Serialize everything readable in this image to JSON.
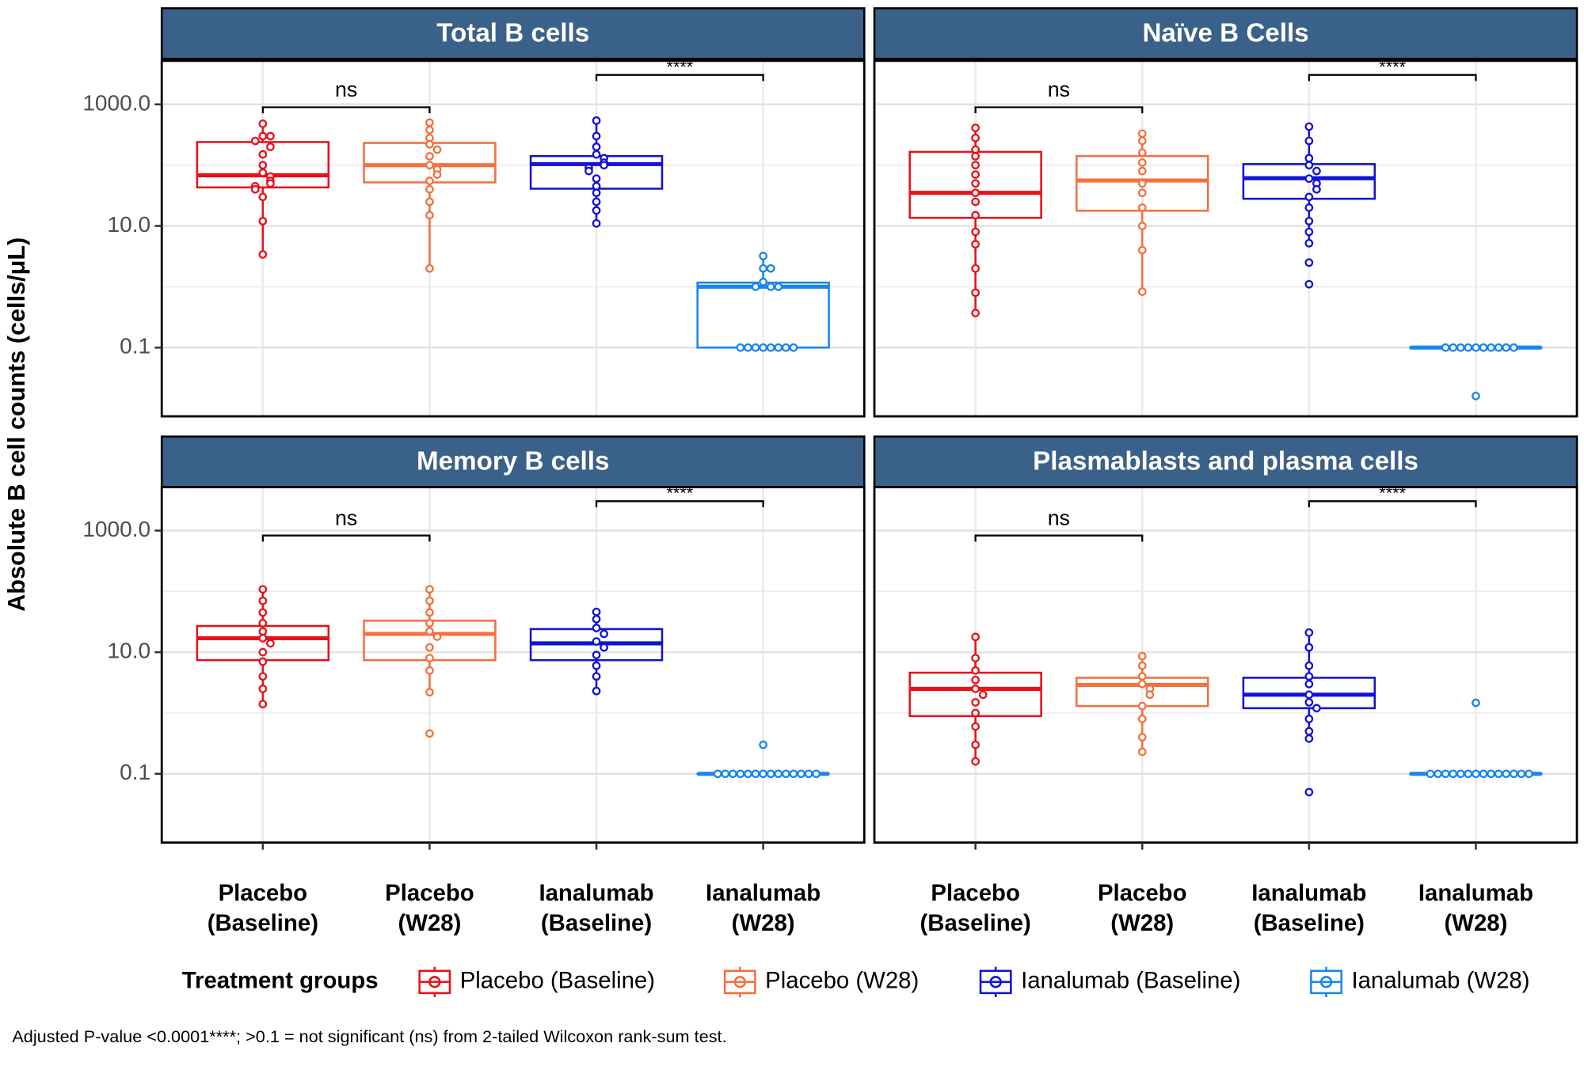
{
  "chart_data": {
    "type": "box",
    "y_label": "Absolute B cell counts (cells/μL)",
    "log_scale": true,
    "ylim": [
      0.0074,
      5200
    ],
    "yticks": [
      0.1,
      {
        "value": 10,
        "label": "10.0"
      },
      {
        "value": 1000,
        "label": "1000.0"
      }
    ],
    "minor_yticks": [
      1,
      100
    ],
    "grid": true,
    "categories": [
      "Placebo (Baseline)",
      "Placebo (W28)",
      "Ianalumab (Baseline)",
      "Ianalumab (W28)"
    ],
    "colors": [
      "#e8101a",
      "#f4703f",
      "#1212d6",
      "#1a85f0"
    ],
    "legend_title": "Treatment groups",
    "footnote": "Adjusted P-value <0.0001****;  >0.1 = not significant (ns) from 2-tailed Wilcoxon rank-sum test.",
    "panels": [
      {
        "title": "Total B cells",
        "comparisons": [
          {
            "groups": [
              0,
              1
            ],
            "label": "ns"
          },
          {
            "groups": [
              2,
              3
            ],
            "label": "****"
          }
        ],
        "boxes": [
          {
            "whisker_low": 3.4,
            "q1": 43,
            "median": 68,
            "q3": 240,
            "whisker_high": 480,
            "points": [
              480,
              300,
              300,
              250,
              200,
              150,
              100,
              75,
              65,
              55,
              50,
              45,
              40,
              30,
              12,
              3.4
            ]
          },
          {
            "whisker_low": 2.0,
            "q1": 52,
            "median": 100,
            "q3": 232,
            "whisker_high": 500,
            "points": [
              500,
              380,
              280,
              220,
              180,
              140,
              100,
              85,
              70,
              55,
              40,
              25,
              15,
              2.0
            ]
          },
          {
            "whisker_low": 11,
            "q1": 41,
            "median": 104,
            "q3": 141,
            "whisker_high": 540,
            "points": [
              540,
              300,
              200,
              150,
              130,
              110,
              100,
              90,
              80,
              60,
              45,
              35,
              25,
              18,
              11
            ]
          },
          {
            "whisker_low": 0.1,
            "q1": 0.1,
            "median": 1.0,
            "q3": 1.17,
            "whisker_high": 3.2,
            "points": [
              3.2,
              2.0,
              2.0,
              1.2,
              1.0,
              1.0,
              1.0,
              0.1,
              0.1,
              0.1,
              0.1,
              0.1,
              0.1,
              0.1,
              0.1
            ]
          }
        ]
      },
      {
        "title": "Naïve B Cells",
        "comparisons": [
          {
            "groups": [
              0,
              1
            ],
            "label": "ns"
          },
          {
            "groups": [
              2,
              3
            ],
            "label": "****"
          }
        ],
        "boxes": [
          {
            "whisker_low": 0.37,
            "q1": 13.6,
            "median": 35,
            "q3": 165,
            "whisker_high": 410,
            "points": [
              410,
              280,
              180,
              140,
              100,
              70,
              50,
              35,
              25,
              15,
              8,
              5,
              2,
              0.8,
              0.37
            ]
          },
          {
            "whisker_low": 0.83,
            "q1": 17.8,
            "median": 56,
            "q3": 141,
            "whisker_high": 330,
            "points": [
              330,
              250,
              160,
              110,
              80,
              50,
              35,
              20,
              10,
              4,
              0.83
            ]
          },
          {
            "whisker_low": 5.2,
            "q1": 28,
            "median": 61,
            "q3": 104,
            "whisker_high": 430,
            "points": [
              430,
              250,
              130,
              100,
              80,
              60,
              50,
              40,
              30,
              20,
              12,
              8,
              5.2,
              2.5,
              1.1
            ]
          },
          {
            "whisker_low": 0.1,
            "q1": 0.1,
            "median": 0.1,
            "q3": 0.1,
            "whisker_high": 0.1,
            "points": [
              0.1,
              0.1,
              0.1,
              0.1,
              0.1,
              0.1,
              0.1,
              0.1,
              0.1,
              0.1,
              0.016
            ]
          }
        ]
      },
      {
        "title": "Memory B cells",
        "comparisons": [
          {
            "groups": [
              0,
              1
            ],
            "label": "ns"
          },
          {
            "groups": [
              2,
              3
            ],
            "label": "****"
          }
        ],
        "boxes": [
          {
            "whisker_low": 1.4,
            "q1": 7.4,
            "median": 17,
            "q3": 27,
            "whisker_high": 108,
            "points": [
              108,
              70,
              45,
              30,
              22,
              17,
              14,
              10,
              7,
              4,
              2.5,
              1.4
            ]
          },
          {
            "whisker_low": 2.2,
            "q1": 7.4,
            "median": 20,
            "q3": 33,
            "whisker_high": 108,
            "points": [
              108,
              70,
              45,
              30,
              22,
              18,
              12,
              8,
              5,
              2.2,
              0.46
            ]
          },
          {
            "whisker_low": 2.3,
            "q1": 7.4,
            "median": 14,
            "q3": 24,
            "whisker_high": 46,
            "points": [
              46,
              35,
              25,
              20,
              15,
              12,
              9,
              6,
              4,
              2.3
            ]
          },
          {
            "whisker_low": 0.1,
            "q1": 0.1,
            "median": 0.1,
            "q3": 0.1,
            "whisker_high": 0.1,
            "points": [
              0.3,
              0.1,
              0.1,
              0.1,
              0.1,
              0.1,
              0.1,
              0.1,
              0.1,
              0.1,
              0.1,
              0.1,
              0.1,
              0.1,
              0.1
            ]
          }
        ]
      },
      {
        "title": "Plasmablasts and plasma cells",
        "comparisons": [
          {
            "groups": [
              0,
              1
            ],
            "label": "ns"
          },
          {
            "groups": [
              2,
              3
            ],
            "label": "****"
          }
        ],
        "boxes": [
          {
            "whisker_low": 0.16,
            "q1": 0.89,
            "median": 2.5,
            "q3": 4.6,
            "whisker_high": 17.8,
            "points": [
              17.8,
              8,
              5,
              3.5,
              2.5,
              2,
              1.5,
              1,
              0.6,
              0.3,
              0.16
            ]
          },
          {
            "whisker_low": 0.23,
            "q1": 1.3,
            "median": 2.9,
            "q3": 3.8,
            "whisker_high": 8.6,
            "points": [
              8.6,
              6,
              4,
              3,
              2.5,
              2,
              1.3,
              0.8,
              0.4,
              0.23
            ]
          },
          {
            "whisker_low": 0.38,
            "q1": 1.2,
            "median": 2.0,
            "q3": 3.8,
            "whisker_high": 21,
            "points": [
              21,
              12,
              6,
              4,
              3,
              2,
              1.5,
              1.2,
              0.8,
              0.5,
              0.38,
              0.05
            ]
          },
          {
            "whisker_low": 0.1,
            "q1": 0.1,
            "median": 0.1,
            "q3": 0.1,
            "whisker_high": 0.1,
            "points": [
              1.47,
              0.1,
              0.1,
              0.1,
              0.1,
              0.1,
              0.1,
              0.1,
              0.1,
              0.1,
              0.1,
              0.1,
              0.1,
              0.1,
              0.1
            ]
          }
        ]
      }
    ]
  }
}
